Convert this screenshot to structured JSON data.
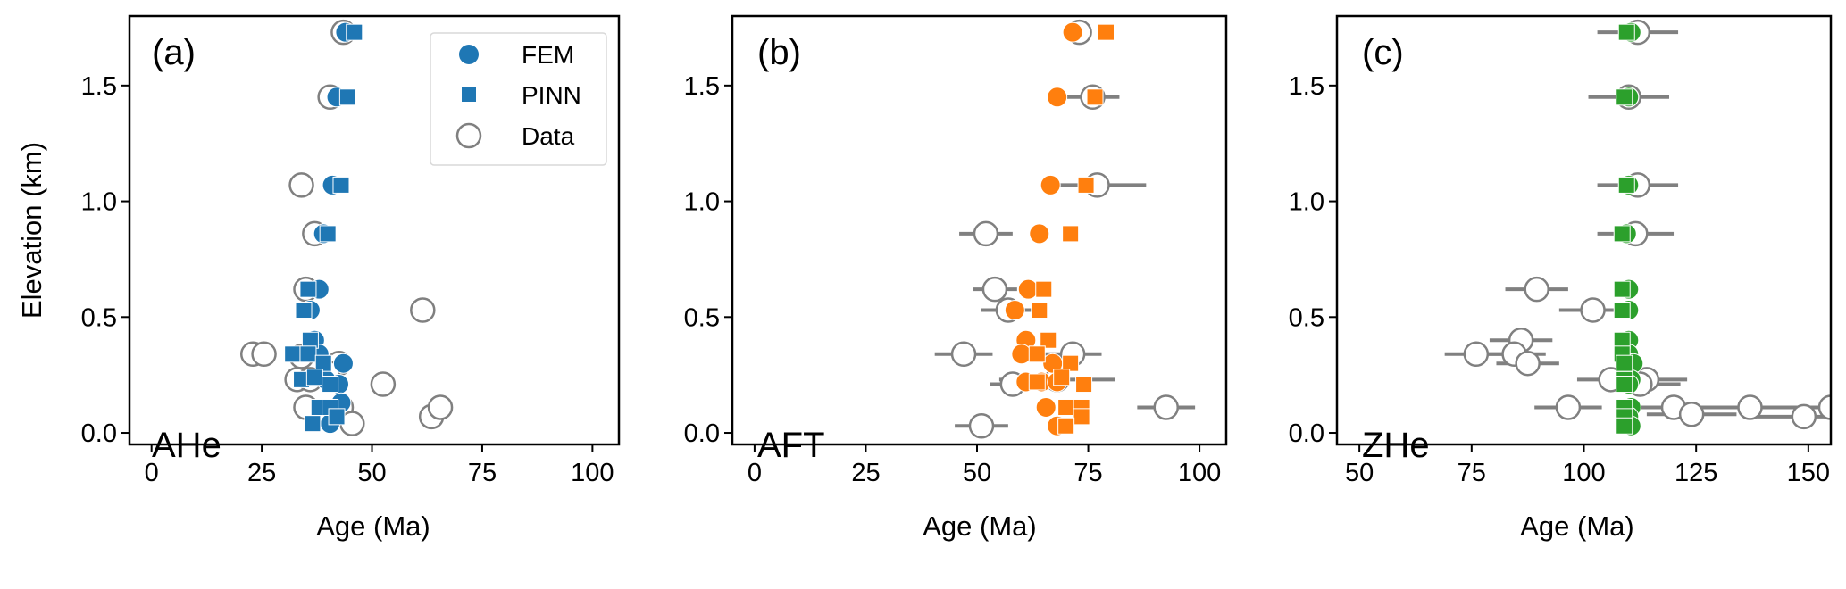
{
  "chart_data": [
    {
      "type": "scatter",
      "panel": "(a)",
      "annotation": "AHe",
      "xlabel": "Age (Ma)",
      "ylabel": "Elevation (km)",
      "xlim": [
        -5,
        106
      ],
      "ylim": [
        -0.05,
        1.8
      ],
      "xticks": [
        0,
        25,
        50,
        75,
        100
      ],
      "yticks": [
        0.0,
        0.5,
        1.0,
        1.5
      ],
      "xtick_labels": [
        "0",
        "25",
        "50",
        "75",
        "100"
      ],
      "ytick_labels": [
        "0.0",
        "0.5",
        "1.0",
        "1.5"
      ],
      "color": "#1f77b4",
      "legend": {
        "placement": "top-right",
        "entries": [
          "FEM",
          "PINN",
          "Data"
        ]
      },
      "series": [
        {
          "name": "Data",
          "marker": "open-circle",
          "points": [
            [
              43.5,
              1.73,
              1
            ],
            [
              40.5,
              1.45,
              1
            ],
            [
              34,
              1.07,
              1
            ],
            [
              37,
              0.86,
              1
            ],
            [
              35,
              0.62,
              1
            ],
            [
              61.5,
              0.53,
              2
            ],
            [
              23,
              0.34,
              1
            ],
            [
              25.5,
              0.34,
              1
            ],
            [
              34,
              0.33,
              1
            ],
            [
              33,
              0.23,
              1
            ],
            [
              36,
              0.23,
              1
            ],
            [
              52.5,
              0.21,
              1.5
            ],
            [
              35,
              0.11,
              1
            ],
            [
              43,
              0.11,
              1
            ],
            [
              63.5,
              0.07,
              2.5
            ],
            [
              65.5,
              0.11,
              2
            ],
            [
              45.5,
              0.04,
              1
            ],
            [
              42.5,
              0.3,
              1
            ],
            [
              40,
              0.26,
              1
            ]
          ]
        },
        {
          "name": "FEM",
          "marker": "filled-circle",
          "points": [
            [
              44,
              1.73
            ],
            [
              42,
              1.45
            ],
            [
              41,
              1.07
            ],
            [
              39,
              0.86
            ],
            [
              38,
              0.62
            ],
            [
              36,
              0.53
            ],
            [
              37,
              0.4
            ],
            [
              38,
              0.34
            ],
            [
              43.5,
              0.3
            ],
            [
              42.5,
              0.21
            ],
            [
              42,
              0.11
            ],
            [
              40.5,
              0.04
            ],
            [
              39.5,
              0.23
            ],
            [
              43,
              0.13
            ]
          ]
        },
        {
          "name": "PINN",
          "marker": "square",
          "points": [
            [
              46,
              1.73
            ],
            [
              44.5,
              1.45
            ],
            [
              43,
              1.07
            ],
            [
              40,
              0.86
            ],
            [
              35.5,
              0.62
            ],
            [
              34.5,
              0.53
            ],
            [
              36,
              0.4
            ],
            [
              32,
              0.34
            ],
            [
              35.5,
              0.34
            ],
            [
              39,
              0.3
            ],
            [
              34,
              0.23
            ],
            [
              37,
              0.24
            ],
            [
              40.5,
              0.21
            ],
            [
              38,
              0.11
            ],
            [
              40.5,
              0.11
            ],
            [
              36.5,
              0.04
            ],
            [
              42,
              0.07
            ]
          ]
        }
      ]
    },
    {
      "type": "scatter",
      "panel": "(b)",
      "annotation": "AFT",
      "xlabel": "Age (Ma)",
      "ylabel": "",
      "xlim": [
        -5,
        106
      ],
      "ylim": [
        -0.05,
        1.8
      ],
      "xticks": [
        0,
        25,
        50,
        75,
        100
      ],
      "yticks": [
        0.0,
        0.5,
        1.0,
        1.5
      ],
      "xtick_labels": [
        "0",
        "25",
        "50",
        "75",
        "100"
      ],
      "ytick_labels": [
        "0.0",
        "0.5",
        "1.0",
        "1.5"
      ],
      "color": "#ff7f0e",
      "series": [
        {
          "name": "Data",
          "marker": "open-circle",
          "points": [
            [
              73,
              1.73,
              1
            ],
            [
              76,
              1.45,
              6
            ],
            [
              77,
              1.07,
              11
            ],
            [
              52,
              0.86,
              6
            ],
            [
              54,
              0.62,
              5
            ],
            [
              57,
              0.53,
              6
            ],
            [
              47,
              0.34,
              6.5
            ],
            [
              71.5,
              0.34,
              6.5
            ],
            [
              58,
              0.21,
              5
            ],
            [
              68,
              0.23,
              13
            ],
            [
              92.5,
              0.11,
              6.5
            ],
            [
              51,
              0.03,
              6
            ]
          ]
        },
        {
          "name": "FEM",
          "marker": "filled-circle",
          "points": [
            [
              71.5,
              1.73
            ],
            [
              68,
              1.45
            ],
            [
              66.5,
              1.07
            ],
            [
              64,
              0.86
            ],
            [
              61.5,
              0.62
            ],
            [
              58.5,
              0.53
            ],
            [
              61,
              0.4
            ],
            [
              60,
              0.34
            ],
            [
              67,
              0.3
            ],
            [
              61,
              0.22
            ],
            [
              64.5,
              0.22
            ],
            [
              68,
              0.22
            ],
            [
              65.5,
              0.11
            ],
            [
              68,
              0.03
            ]
          ]
        },
        {
          "name": "PINN",
          "marker": "square",
          "points": [
            [
              79,
              1.73
            ],
            [
              76.5,
              1.45
            ],
            [
              74.5,
              1.07
            ],
            [
              71,
              0.86
            ],
            [
              65,
              0.62
            ],
            [
              64,
              0.53
            ],
            [
              66,
              0.4
            ],
            [
              63.5,
              0.34
            ],
            [
              71,
              0.3
            ],
            [
              63.5,
              0.22
            ],
            [
              69,
              0.24
            ],
            [
              74,
              0.21
            ],
            [
              70,
              0.11
            ],
            [
              73.5,
              0.11
            ],
            [
              73.5,
              0.07
            ],
            [
              70,
              0.03
            ]
          ]
        }
      ]
    },
    {
      "type": "scatter",
      "panel": "(c)",
      "annotation": "ZHe",
      "xlabel": "Age (Ma)",
      "ylabel": "",
      "xlim": [
        45,
        155
      ],
      "ylim": [
        -0.05,
        1.8
      ],
      "xticks": [
        50,
        75,
        100,
        125,
        150
      ],
      "yticks": [
        0.0,
        0.5,
        1.0,
        1.5
      ],
      "xtick_labels": [
        "50",
        "75",
        "100",
        "125",
        "150"
      ],
      "ytick_labels": [
        "0.0",
        "0.5",
        "1.0",
        "1.5"
      ],
      "color": "#2ca02c",
      "series": [
        {
          "name": "Data",
          "marker": "open-circle",
          "points": [
            [
              112,
              1.73,
              9
            ],
            [
              110,
              1.45,
              9
            ],
            [
              112,
              1.07,
              9
            ],
            [
              111.5,
              0.86,
              8.5
            ],
            [
              89.5,
              0.62,
              7
            ],
            [
              102,
              0.53,
              7.5
            ],
            [
              86,
              0.4,
              7
            ],
            [
              76,
              0.34,
              7
            ],
            [
              84.5,
              0.34,
              7
            ],
            [
              87.5,
              0.3,
              7
            ],
            [
              106,
              0.23,
              7.5
            ],
            [
              114,
              0.23,
              9
            ],
            [
              112.5,
              0.21,
              9
            ],
            [
              96.5,
              0.11,
              7.5
            ],
            [
              120,
              0.11,
              8
            ],
            [
              124,
              0.08,
              10
            ],
            [
              137,
              0.11,
              14
            ],
            [
              149,
              0.07,
              12
            ],
            [
              155,
              0.11,
              12
            ]
          ]
        },
        {
          "name": "FEM",
          "marker": "filled-circle",
          "points": [
            [
              110.5,
              1.73
            ],
            [
              110,
              1.45
            ],
            [
              110,
              1.07
            ],
            [
              109.5,
              0.86
            ],
            [
              110,
              0.62
            ],
            [
              110,
              0.53
            ],
            [
              110,
              0.4
            ],
            [
              110,
              0.34
            ],
            [
              111,
              0.3
            ],
            [
              110.5,
              0.23
            ],
            [
              110,
              0.21
            ],
            [
              110.5,
              0.11
            ],
            [
              110,
              0.07
            ],
            [
              110.5,
              0.03
            ]
          ]
        },
        {
          "name": "PINN",
          "marker": "square",
          "points": [
            [
              109.5,
              1.73
            ],
            [
              109,
              1.45
            ],
            [
              109.5,
              1.07
            ],
            [
              108.5,
              0.86
            ],
            [
              108.5,
              0.62
            ],
            [
              108.5,
              0.53
            ],
            [
              108.5,
              0.4
            ],
            [
              108.5,
              0.34
            ],
            [
              109,
              0.3
            ],
            [
              109,
              0.23
            ],
            [
              109,
              0.21
            ],
            [
              109,
              0.11
            ],
            [
              109,
              0.07
            ],
            [
              109,
              0.03
            ]
          ]
        }
      ]
    }
  ]
}
